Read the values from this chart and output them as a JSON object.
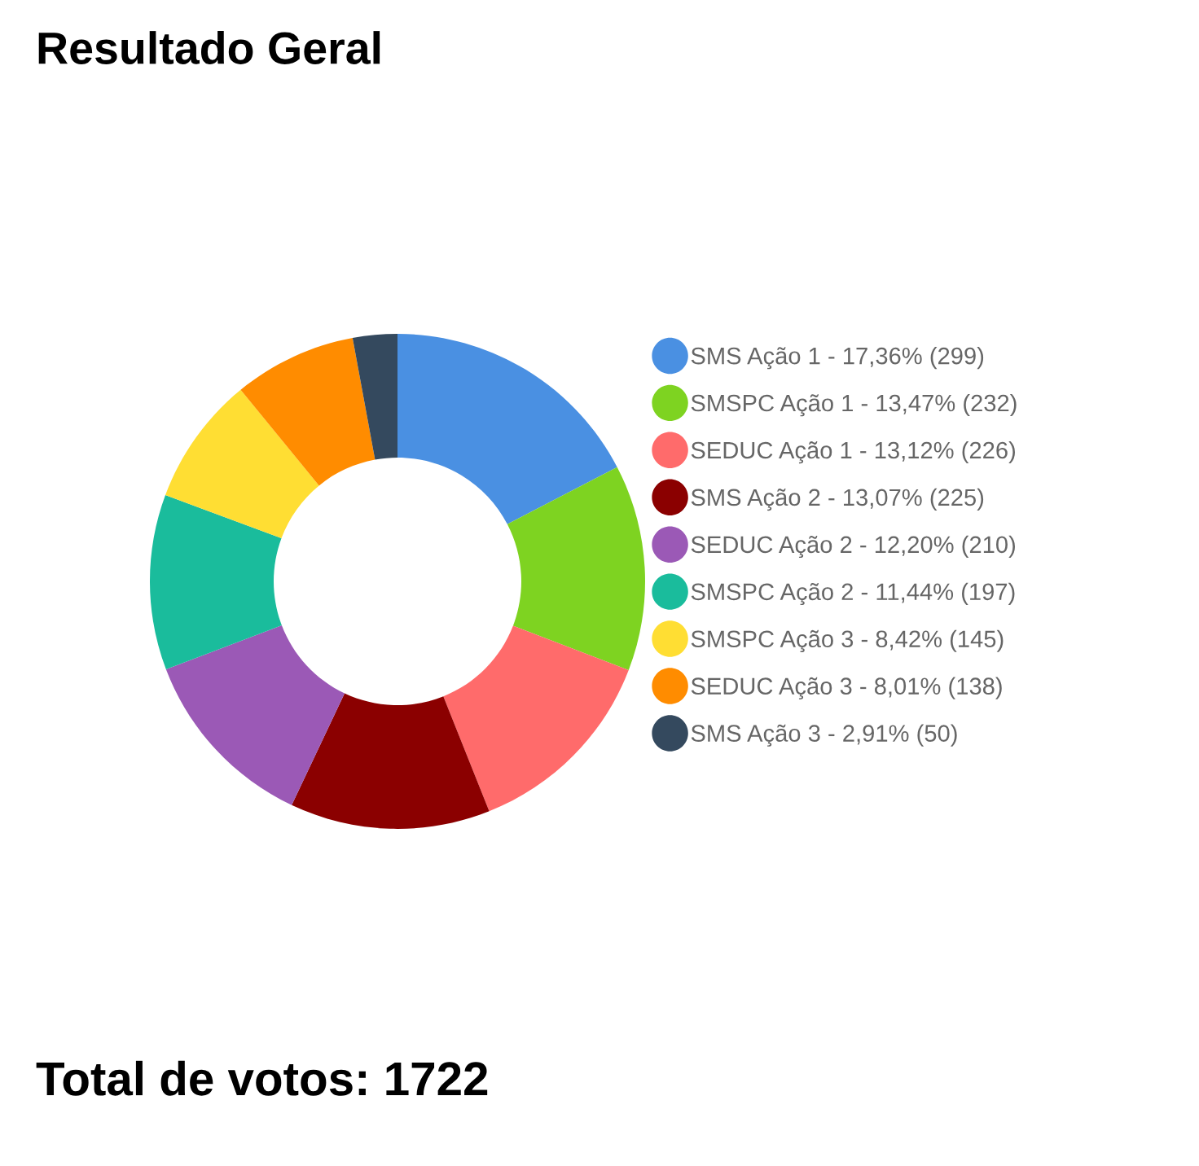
{
  "chart_data": {
    "type": "donut",
    "title": "Resultado Geral",
    "categories": [
      "SMS Ação 1 - 17,36% (299)",
      "SMSPC Ação 1 - 13,47% (232)",
      "SEDUC Ação 1 - 13,12% (226)",
      "SMS Ação 2 - 13,07% (225)",
      "SEDUC Ação 2 - 12,20% (210)",
      "SMSPC Ação 2 - 11,44% (197)",
      "SMSPC Ação 3 - 8,42% (145)",
      "SEDUC Ação 3 - 8,01% (138)",
      "SMS Ação 3 - 2,91% (50)"
    ],
    "values": [
      299,
      232,
      226,
      225,
      210,
      197,
      145,
      138,
      50
    ],
    "colors": [
      "#4a90e2",
      "#7ed321",
      "#ff6b6b",
      "#8b0000",
      "#9b59b6",
      "#1abc9c",
      "#ffde33",
      "#ff8c00",
      "#34495e"
    ],
    "legend": "right",
    "annotations": [
      "Total de votos: 1722"
    ]
  }
}
